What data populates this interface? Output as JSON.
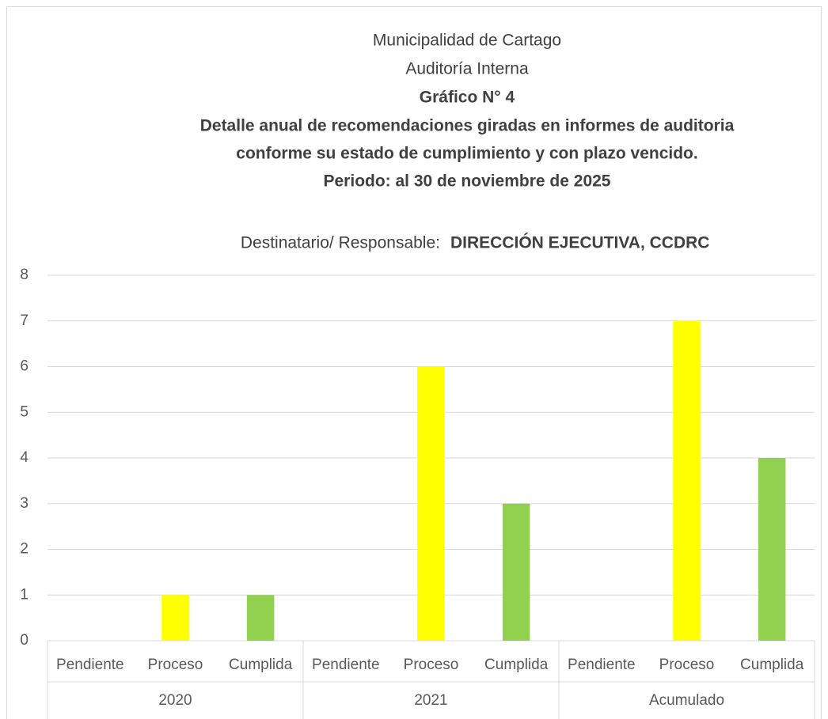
{
  "chart_data": {
    "type": "bar",
    "title_lines": [
      "Municipalidad de Cartago",
      "Auditoría Interna"
    ],
    "title_bold_lines": [
      "Gráfico N° 4",
      "Detalle anual de recomendaciones giradas en informes de auditoria",
      "conforme su estado de cumplimiento y con plazo vencido.",
      "Periodo: al 30 de noviembre de 2025"
    ],
    "subtitle": "Destinatario/ Responsable:",
    "subtitle_bold": "DIRECCIÓN EJECUTIVA, CCDRC",
    "colors": [
      "#ff0000",
      "#ffff00",
      "#92d050"
    ],
    "groups": [
      {
        "name": "2020",
        "categories": [
          "Pendiente",
          "Proceso",
          "Cumplida"
        ],
        "values": [
          0,
          1,
          1
        ]
      },
      {
        "name": "2021",
        "categories": [
          "Pendiente",
          "Proceso",
          "Cumplida"
        ],
        "values": [
          0,
          6,
          3
        ]
      },
      {
        "name": "Acumulado",
        "categories": [
          "Pendiente",
          "Proceso",
          "Cumplida"
        ],
        "values": [
          0,
          7,
          4
        ]
      }
    ],
    "ylim": [
      0,
      8
    ],
    "yticks": [
      0,
      1,
      2,
      3,
      4,
      5,
      6,
      7,
      8
    ],
    "grid": true
  }
}
